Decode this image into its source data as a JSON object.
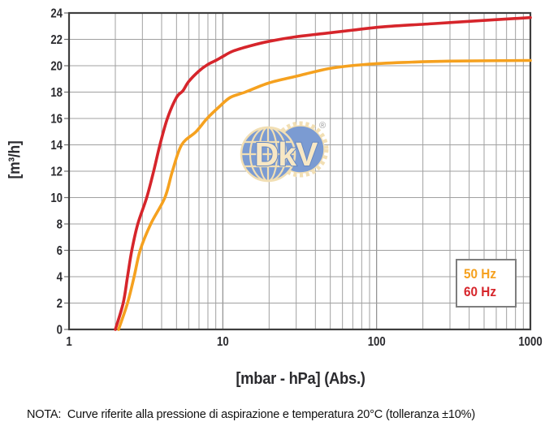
{
  "figure": {
    "ylabel": "[m³/h]",
    "xlabel": "[mbar - hPa] (Abs.)",
    "note": "NOTA:  Curve riferite alla pressione di aspirazione e temperatura 20°C (tolleranza ±10%)",
    "legend": [
      {
        "label": "50 Hz",
        "color": "#F5A11F"
      },
      {
        "label": "60 Hz",
        "color": "#D6252B"
      }
    ]
  },
  "chart_data": {
    "type": "line",
    "title": "",
    "xlabel": "[mbar - hPa] (Abs.)",
    "ylabel": "[m³/h]",
    "x_scale": "log",
    "xlim": [
      1,
      1000
    ],
    "ylim": [
      0,
      24
    ],
    "x_ticks": [
      1,
      10,
      100,
      1000
    ],
    "y_ticks": [
      0,
      2,
      4,
      6,
      8,
      10,
      12,
      14,
      16,
      18,
      20,
      22,
      24
    ],
    "grid": true,
    "legend_position": "inside-bottom-right",
    "watermark": {
      "text": "DkV",
      "reg": "®"
    },
    "series": [
      {
        "name": "50 Hz",
        "color": "#F5A11F",
        "points": [
          [
            2.1,
            0
          ],
          [
            2.4,
            2
          ],
          [
            2.65,
            4
          ],
          [
            2.9,
            6
          ],
          [
            3.4,
            8
          ],
          [
            4.2,
            10
          ],
          [
            4.7,
            12
          ],
          [
            5.4,
            14
          ],
          [
            6.7,
            15
          ],
          [
            7.9,
            16
          ],
          [
            9.5,
            16.9
          ],
          [
            11.2,
            17.6
          ],
          [
            14,
            18
          ],
          [
            20,
            18.7
          ],
          [
            30,
            19.2
          ],
          [
            50,
            19.8
          ],
          [
            85,
            20.1
          ],
          [
            150,
            20.25
          ],
          [
            300,
            20.35
          ],
          [
            1000,
            20.4
          ]
        ]
      },
      {
        "name": "60 Hz",
        "color": "#D6252B",
        "points": [
          [
            2,
            0
          ],
          [
            2.25,
            2
          ],
          [
            2.4,
            4
          ],
          [
            2.56,
            6
          ],
          [
            2.8,
            8
          ],
          [
            3.2,
            10
          ],
          [
            3.55,
            12
          ],
          [
            3.9,
            14
          ],
          [
            4.36,
            16
          ],
          [
            5,
            17.6
          ],
          [
            5.5,
            18.1
          ],
          [
            6,
            18.8
          ],
          [
            7,
            19.6
          ],
          [
            8,
            20.1
          ],
          [
            9,
            20.4
          ],
          [
            10,
            20.7
          ],
          [
            11.6,
            21.1
          ],
          [
            15,
            21.5
          ],
          [
            20,
            21.85
          ],
          [
            30,
            22.2
          ],
          [
            46,
            22.45
          ],
          [
            70,
            22.7
          ],
          [
            110,
            22.95
          ],
          [
            240,
            23.2
          ],
          [
            520,
            23.45
          ],
          [
            1000,
            23.65
          ]
        ]
      }
    ]
  },
  "colors": {
    "grid_minor": "#A0A0A0",
    "grid_major": "#8C8C8C",
    "frame": "#3E3E3E",
    "tick": "#6E6E6E",
    "tick_text": "#2A2A2E",
    "logo_blue": "#7B9BD2",
    "logo_cream": "#F2DFB4",
    "logo_text_fill": "#F7E7C4",
    "logo_text_stroke": "#6386C2",
    "reg_mark": "#9A9A9A"
  }
}
